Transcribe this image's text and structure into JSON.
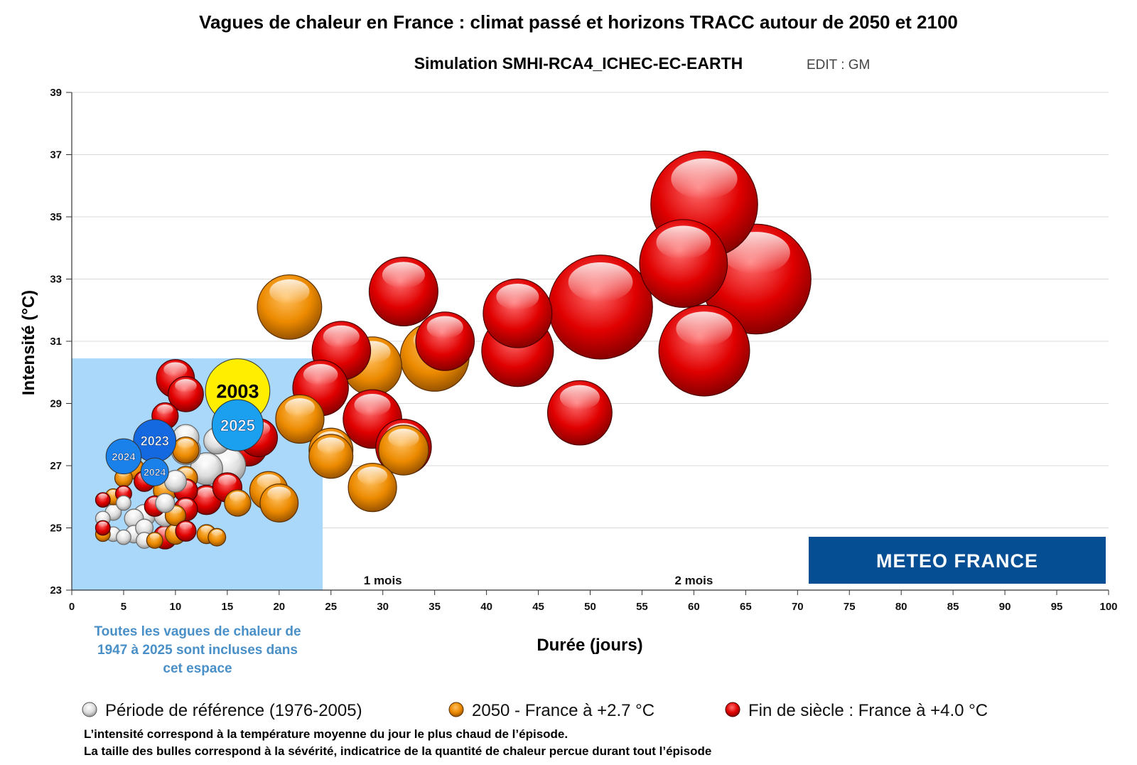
{
  "chart_data": {
    "type": "scatter",
    "subtype": "bubble",
    "title": "Vagues de chaleur en France : climat passé et horizons TRACC autour de 2050 et 2100",
    "subtitle": "Simulation SMHI-RCA4_ICHEC-EC-EARTH",
    "edit_note": "EDIT : GM",
    "xlabel": "Durée (jours)",
    "ylabel": "Intensité (°C)",
    "xlim": [
      0,
      100
    ],
    "ylim": [
      23,
      39
    ],
    "xticks": [
      0,
      5,
      10,
      15,
      20,
      25,
      30,
      35,
      40,
      45,
      50,
      55,
      60,
      65,
      70,
      75,
      80,
      85,
      90,
      95,
      100
    ],
    "yticks": [
      23,
      25,
      27,
      29,
      31,
      33,
      35,
      37,
      39
    ],
    "grid": true,
    "month_markers": [
      {
        "x": 30,
        "label": "1 mois"
      },
      {
        "x": 60,
        "label": "2 mois"
      }
    ],
    "historical_region": {
      "x": [
        0,
        24.2
      ],
      "y": [
        23,
        30.45
      ],
      "note": "Toutes les vagues de chaleur de 1947 à 2025 sont incluses dans cet espace",
      "note_lines": [
        "Toutes les vagues de chaleur de",
        "1947 à 2025 sont incluses dans",
        "cet espace"
      ]
    },
    "series": [
      {
        "name": "Période de référence (1976-2005)",
        "color": "#e0e0e0",
        "points": [
          {
            "x": 3,
            "y": 25.3,
            "size": 1.0
          },
          {
            "x": 4,
            "y": 25.5,
            "size": 1.1
          },
          {
            "x": 5,
            "y": 25.8,
            "size": 1.0
          },
          {
            "x": 4,
            "y": 24.8,
            "size": 1.0
          },
          {
            "x": 5,
            "y": 24.7,
            "size": 1.0
          },
          {
            "x": 6,
            "y": 25.3,
            "size": 1.3
          },
          {
            "x": 6,
            "y": 24.8,
            "size": 1.2
          },
          {
            "x": 7,
            "y": 25.0,
            "size": 1.2
          },
          {
            "x": 7,
            "y": 24.6,
            "size": 1.1
          },
          {
            "x": 7,
            "y": 25.4,
            "size": 1.5
          },
          {
            "x": 9,
            "y": 25.4,
            "size": 1.5
          },
          {
            "x": 9,
            "y": 25.8,
            "size": 1.3
          },
          {
            "x": 10,
            "y": 26.5,
            "size": 1.5
          },
          {
            "x": 11,
            "y": 27.9,
            "size": 1.8
          },
          {
            "x": 11,
            "y": 27.5,
            "size": 2.0
          },
          {
            "x": 13,
            "y": 26.9,
            "size": 2.2
          },
          {
            "x": 14,
            "y": 27.8,
            "size": 1.8
          },
          {
            "x": 15,
            "y": 27.0,
            "size": 2.5
          }
        ]
      },
      {
        "name": "2050 - France à +2.7 °C",
        "color": "#f08c00",
        "points": [
          {
            "x": 3,
            "y": 24.8,
            "size": 1.0
          },
          {
            "x": 4,
            "y": 26.0,
            "size": 1.1
          },
          {
            "x": 5,
            "y": 26.6,
            "size": 1.2
          },
          {
            "x": 6,
            "y": 26.9,
            "size": 1.4
          },
          {
            "x": 8,
            "y": 24.6,
            "size": 1.1
          },
          {
            "x": 9,
            "y": 26.2,
            "size": 1.6
          },
          {
            "x": 10,
            "y": 24.8,
            "size": 1.4
          },
          {
            "x": 10,
            "y": 25.4,
            "size": 1.4
          },
          {
            "x": 11,
            "y": 27.5,
            "size": 1.8
          },
          {
            "x": 11,
            "y": 26.6,
            "size": 1.6
          },
          {
            "x": 13,
            "y": 24.8,
            "size": 1.3
          },
          {
            "x": 14,
            "y": 24.7,
            "size": 1.2
          },
          {
            "x": 16,
            "y": 25.8,
            "size": 1.8
          },
          {
            "x": 19,
            "y": 26.2,
            "size": 2.6
          },
          {
            "x": 20,
            "y": 25.8,
            "size": 2.6
          },
          {
            "x": 21,
            "y": 32.1,
            "size": 4.4
          },
          {
            "x": 22,
            "y": 28.5,
            "size": 3.3
          },
          {
            "x": 25,
            "y": 27.5,
            "size": 3.0
          },
          {
            "x": 25,
            "y": 27.3,
            "size": 3.0
          },
          {
            "x": 29,
            "y": 30.2,
            "size": 4.0
          },
          {
            "x": 29,
            "y": 26.3,
            "size": 3.3
          },
          {
            "x": 32,
            "y": 27.5,
            "size": 3.4
          },
          {
            "x": 35,
            "y": 30.5,
            "size": 4.7
          }
        ]
      },
      {
        "name": "Fin de siècle : France à +4.0 °C",
        "color": "#e20000",
        "points": [
          {
            "x": 3,
            "y": 25.9,
            "size": 1.0
          },
          {
            "x": 3,
            "y": 25.0,
            "size": 1.0
          },
          {
            "x": 5,
            "y": 26.1,
            "size": 1.1
          },
          {
            "x": 7,
            "y": 26.5,
            "size": 1.4
          },
          {
            "x": 8,
            "y": 25.7,
            "size": 1.4
          },
          {
            "x": 9,
            "y": 28.6,
            "size": 1.8
          },
          {
            "x": 9,
            "y": 24.7,
            "size": 1.6
          },
          {
            "x": 11,
            "y": 26.2,
            "size": 1.6
          },
          {
            "x": 11,
            "y": 29.3,
            "size": 2.4
          },
          {
            "x": 10,
            "y": 29.8,
            "size": 2.6
          },
          {
            "x": 11,
            "y": 25.6,
            "size": 1.6
          },
          {
            "x": 11,
            "y": 24.9,
            "size": 1.4
          },
          {
            "x": 13,
            "y": 25.9,
            "size": 2.0
          },
          {
            "x": 15,
            "y": 26.3,
            "size": 2.0
          },
          {
            "x": 17,
            "y": 27.6,
            "size": 2.6
          },
          {
            "x": 18,
            "y": 27.9,
            "size": 2.6
          },
          {
            "x": 24,
            "y": 29.5,
            "size": 3.8
          },
          {
            "x": 26,
            "y": 30.7,
            "size": 4.0
          },
          {
            "x": 29,
            "y": 28.5,
            "size": 4.0
          },
          {
            "x": 32,
            "y": 27.6,
            "size": 3.8
          },
          {
            "x": 32,
            "y": 32.6,
            "size": 4.7
          },
          {
            "x": 36,
            "y": 31.0,
            "size": 4.0
          },
          {
            "x": 43,
            "y": 30.7,
            "size": 4.9
          },
          {
            "x": 43,
            "y": 31.9,
            "size": 4.7
          },
          {
            "x": 49,
            "y": 28.7,
            "size": 4.4
          },
          {
            "x": 51,
            "y": 32.1,
            "size": 7.1
          },
          {
            "x": 66,
            "y": 33.0,
            "size": 7.5
          },
          {
            "x": 61,
            "y": 30.7,
            "size": 6.2
          },
          {
            "x": 59,
            "y": 33.5,
            "size": 6.0
          },
          {
            "x": 61,
            "y": 35.4,
            "size": 7.3
          }
        ]
      }
    ],
    "highlighted_events": [
      {
        "label": "2003",
        "x": 16,
        "y": 29.4,
        "size": 4.4,
        "color": "#ffee00",
        "text_color": "#000000"
      },
      {
        "label": "2025",
        "x": 16,
        "y": 28.3,
        "size": 3.5,
        "color": "#1aa0ee",
        "text_color": "#ffffff"
      },
      {
        "label": "2023",
        "x": 8,
        "y": 27.8,
        "size": 2.9,
        "color": "#1468e0",
        "text_color": "#ffffff"
      },
      {
        "label": "2024",
        "x": 5,
        "y": 27.3,
        "size": 2.4,
        "color": "#1a80ea",
        "text_color": "#ffffff"
      },
      {
        "label": "2024",
        "x": 8,
        "y": 26.8,
        "size": 1.9,
        "color": "#1a80ea",
        "text_color": "#ffffff"
      }
    ]
  },
  "legend": [
    {
      "label": "Période de référence (1976-2005)",
      "color": "#e0e0e0"
    },
    {
      "label": "2050 - France à +2.7 °C",
      "color": "#f08c00"
    },
    {
      "label": "Fin de siècle : France à +4.0 °C",
      "color": "#e20000"
    }
  ],
  "footnotes": [
    "L’intensité correspond à la température moyenne du jour le plus chaud de l’épisode.",
    "La taille des bulles correspond à la sévérité, indicatrice de la quantité de chaleur percue durant tout l’épisode"
  ],
  "logo": {
    "text": "METEO FRANCE",
    "color": "#064e93"
  }
}
